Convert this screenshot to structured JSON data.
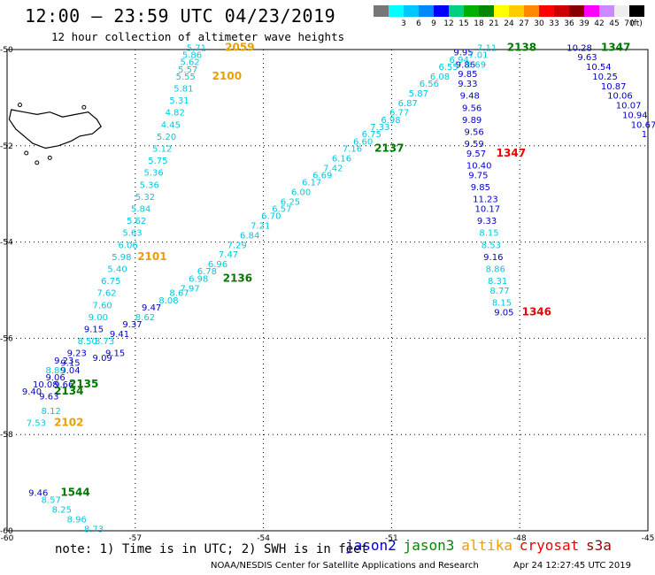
{
  "header": {
    "title": "12:00 — 23:59 UTC 04/23/2019",
    "subtitle": "12 hour collection of altimeter wave heights"
  },
  "scale": {
    "unit_label": "(ft)",
    "bins": [
      {
        "color": "#777777",
        "label": ""
      },
      {
        "color": "#00ffff",
        "label": "3"
      },
      {
        "color": "#00c8ff",
        "label": "6"
      },
      {
        "color": "#0088ff",
        "label": "9"
      },
      {
        "color": "#0000ff",
        "label": "12"
      },
      {
        "color": "#00d080",
        "label": "15"
      },
      {
        "color": "#00b000",
        "label": "18"
      },
      {
        "color": "#008800",
        "label": "21"
      },
      {
        "color": "#ffff00",
        "label": "24"
      },
      {
        "color": "#ffcc00",
        "label": "27"
      },
      {
        "color": "#ff8800",
        "label": "30"
      },
      {
        "color": "#ff0000",
        "label": "33"
      },
      {
        "color": "#cc0000",
        "label": "36"
      },
      {
        "color": "#880000",
        "label": "39"
      },
      {
        "color": "#ff00ff",
        "label": "42"
      },
      {
        "color": "#cc88ff",
        "label": "45"
      },
      {
        "color": "#eeeeee",
        "label": "70"
      },
      {
        "color": "#000000",
        "label": ""
      }
    ]
  },
  "map": {
    "lon_range": [
      -60,
      -45
    ],
    "lat_range": [
      -60,
      -50
    ],
    "lon_ticks": [
      "-60",
      "-57",
      "-54",
      "-51",
      "-48",
      "-45"
    ],
    "lat_ticks": [
      "-50",
      "-52",
      "-54",
      "-56",
      "-58",
      "-60"
    ],
    "colors": {
      "cyan": "#00c8e0",
      "blue": "#0000cc",
      "green": "#007700",
      "orange": "#e8a000",
      "red": "#ee0000"
    },
    "labels": [
      {
        "t": "5.71",
        "c": "cyan",
        "lon": -55.8,
        "lat": -49.95
      },
      {
        "t": "2059",
        "c": "orange",
        "lon": -54.9,
        "lat": -49.95,
        "b": true
      },
      {
        "t": "5.86",
        "c": "cyan",
        "lon": -55.9,
        "lat": -50.1
      },
      {
        "t": "5.62",
        "c": "cyan",
        "lon": -55.95,
        "lat": -50.25
      },
      {
        "t": "5.57",
        "c": "cyan",
        "lon": -56.0,
        "lat": -50.4
      },
      {
        "t": "5.55",
        "c": "cyan",
        "lon": -56.05,
        "lat": -50.55
      },
      {
        "t": "2100",
        "c": "orange",
        "lon": -55.2,
        "lat": -50.55,
        "b": true
      },
      {
        "t": "5.81",
        "c": "cyan",
        "lon": -56.1,
        "lat": -50.8
      },
      {
        "t": "5.31",
        "c": "cyan",
        "lon": -56.2,
        "lat": -51.05
      },
      {
        "t": "4.82",
        "c": "cyan",
        "lon": -56.3,
        "lat": -51.3
      },
      {
        "t": "4.45",
        "c": "cyan",
        "lon": -56.4,
        "lat": -51.55
      },
      {
        "t": "5.20",
        "c": "cyan",
        "lon": -56.5,
        "lat": -51.8
      },
      {
        "t": "5.12",
        "c": "cyan",
        "lon": -56.6,
        "lat": -52.05
      },
      {
        "t": "5.75",
        "c": "cyan",
        "lon": -56.7,
        "lat": -52.3
      },
      {
        "t": "5.36",
        "c": "cyan",
        "lon": -56.8,
        "lat": -52.55
      },
      {
        "t": "5.36",
        "c": "cyan",
        "lon": -56.9,
        "lat": -52.8
      },
      {
        "t": "5.32",
        "c": "cyan",
        "lon": -57.0,
        "lat": -53.05
      },
      {
        "t": "5.84",
        "c": "cyan",
        "lon": -57.1,
        "lat": -53.3
      },
      {
        "t": "5.62",
        "c": "cyan",
        "lon": -57.2,
        "lat": -53.55
      },
      {
        "t": "5.63",
        "c": "cyan",
        "lon": -57.3,
        "lat": -53.8
      },
      {
        "t": "6.06",
        "c": "cyan",
        "lon": -57.4,
        "lat": -54.05
      },
      {
        "t": "5.98",
        "c": "cyan",
        "lon": -57.55,
        "lat": -54.3
      },
      {
        "t": "2101",
        "c": "orange",
        "lon": -56.95,
        "lat": -54.3,
        "b": true
      },
      {
        "t": "5.40",
        "c": "cyan",
        "lon": -57.65,
        "lat": -54.55
      },
      {
        "t": "6.75",
        "c": "cyan",
        "lon": -57.8,
        "lat": -54.8
      },
      {
        "t": "7.62",
        "c": "cyan",
        "lon": -57.9,
        "lat": -55.05
      },
      {
        "t": "7.60",
        "c": "cyan",
        "lon": -58.0,
        "lat": -55.3
      },
      {
        "t": "9.00",
        "c": "cyan",
        "lon": -58.1,
        "lat": -55.55
      },
      {
        "t": "9.15",
        "c": "blue",
        "lon": -58.2,
        "lat": -55.8
      },
      {
        "t": "8.50",
        "c": "cyan",
        "lon": -58.35,
        "lat": -56.05
      },
      {
        "t": "9.23",
        "c": "blue",
        "lon": -58.6,
        "lat": -56.3
      },
      {
        "t": "9.09",
        "c": "blue",
        "lon": -58.0,
        "lat": -56.4
      },
      {
        "t": "9.15",
        "c": "blue",
        "lon": -57.7,
        "lat": -56.3
      },
      {
        "t": "9.23",
        "c": "blue",
        "lon": -58.9,
        "lat": -56.45
      },
      {
        "t": "9.15",
        "c": "blue",
        "lon": -58.75,
        "lat": -56.5
      },
      {
        "t": "9.04",
        "c": "blue",
        "lon": -58.75,
        "lat": -56.65
      },
      {
        "t": "8.89",
        "c": "cyan",
        "lon": -59.1,
        "lat": -56.65
      },
      {
        "t": "9.06",
        "c": "blue",
        "lon": -59.1,
        "lat": -56.8
      },
      {
        "t": "10.08",
        "c": "blue",
        "lon": -59.4,
        "lat": -56.95
      },
      {
        "t": "9.66",
        "c": "blue",
        "lon": -58.9,
        "lat": -56.95
      },
      {
        "t": "2135",
        "c": "green",
        "lon": -58.55,
        "lat": -56.95,
        "b": true
      },
      {
        "t": "9.40",
        "c": "blue",
        "lon": -59.65,
        "lat": -57.1
      },
      {
        "t": "2134",
        "c": "green",
        "lon": -58.9,
        "lat": -57.1,
        "b": true
      },
      {
        "t": "9.63",
        "c": "blue",
        "lon": -59.25,
        "lat": -57.2
      },
      {
        "t": "8.12",
        "c": "cyan",
        "lon": -59.2,
        "lat": -57.5
      },
      {
        "t": "7.53",
        "c": "cyan",
        "lon": -59.55,
        "lat": -57.75
      },
      {
        "t": "2102",
        "c": "orange",
        "lon": -58.9,
        "lat": -57.75,
        "b": true
      },
      {
        "t": "9.46",
        "c": "blue",
        "lon": -59.5,
        "lat": -59.2
      },
      {
        "t": "1544",
        "c": "green",
        "lon": -58.75,
        "lat": -59.2,
        "b": true
      },
      {
        "t": "8.57",
        "c": "cyan",
        "lon": -59.2,
        "lat": -59.35
      },
      {
        "t": "8.25",
        "c": "cyan",
        "lon": -58.95,
        "lat": -59.55
      },
      {
        "t": "8.96",
        "c": "cyan",
        "lon": -58.6,
        "lat": -59.75
      },
      {
        "t": "8.73",
        "c": "cyan",
        "lon": -58.2,
        "lat": -59.95
      },
      {
        "t": "9.37",
        "c": "blue",
        "lon": -57.3,
        "lat": -55.7
      },
      {
        "t": "9.41",
        "c": "blue",
        "lon": -57.6,
        "lat": -55.9
      },
      {
        "t": "8.73",
        "c": "cyan",
        "lon": -57.95,
        "lat": -56.05
      },
      {
        "t": "8.62",
        "c": "cyan",
        "lon": -57.0,
        "lat": -55.55
      },
      {
        "t": "9.47",
        "c": "blue",
        "lon": -56.85,
        "lat": -55.35
      },
      {
        "t": "8.08",
        "c": "cyan",
        "lon": -56.45,
        "lat": -55.2
      },
      {
        "t": "8.67",
        "c": "cyan",
        "lon": -56.2,
        "lat": -55.05
      },
      {
        "t": "7.97",
        "c": "cyan",
        "lon": -55.95,
        "lat": -54.95
      },
      {
        "t": "6.98",
        "c": "cyan",
        "lon": -55.75,
        "lat": -54.75
      },
      {
        "t": "2136",
        "c": "green",
        "lon": -54.95,
        "lat": -54.75,
        "b": true
      },
      {
        "t": "6.78",
        "c": "cyan",
        "lon": -55.55,
        "lat": -54.6
      },
      {
        "t": "6.96",
        "c": "cyan",
        "lon": -55.3,
        "lat": -54.45
      },
      {
        "t": "7.47",
        "c": "cyan",
        "lon": -55.05,
        "lat": -54.25
      },
      {
        "t": "7.29",
        "c": "cyan",
        "lon": -54.85,
        "lat": -54.05
      },
      {
        "t": "6.84",
        "c": "cyan",
        "lon": -54.55,
        "lat": -53.85
      },
      {
        "t": "7.21",
        "c": "cyan",
        "lon": -54.3,
        "lat": -53.65
      },
      {
        "t": "6.70",
        "c": "cyan",
        "lon": -54.05,
        "lat": -53.45
      },
      {
        "t": "6.57",
        "c": "cyan",
        "lon": -53.8,
        "lat": -53.3
      },
      {
        "t": "6.25",
        "c": "cyan",
        "lon": -53.6,
        "lat": -53.15
      },
      {
        "t": "6.00",
        "c": "cyan",
        "lon": -53.35,
        "lat": -52.95
      },
      {
        "t": "6.17",
        "c": "cyan",
        "lon": -53.1,
        "lat": -52.75
      },
      {
        "t": "6.69",
        "c": "cyan",
        "lon": -52.85,
        "lat": -52.6
      },
      {
        "t": "7.42",
        "c": "cyan",
        "lon": -52.6,
        "lat": -52.45
      },
      {
        "t": "6.16",
        "c": "cyan",
        "lon": -52.4,
        "lat": -52.25
      },
      {
        "t": "7.16",
        "c": "cyan",
        "lon": -52.15,
        "lat": -52.05
      },
      {
        "t": "2137",
        "c": "green",
        "lon": -51.4,
        "lat": -52.05,
        "b": true
      },
      {
        "t": "6.60",
        "c": "cyan",
        "lon": -51.9,
        "lat": -51.9
      },
      {
        "t": "6.75",
        "c": "cyan",
        "lon": -51.7,
        "lat": -51.75
      },
      {
        "t": "7.33",
        "c": "cyan",
        "lon": -51.5,
        "lat": -51.6
      },
      {
        "t": "6.98",
        "c": "cyan",
        "lon": -51.25,
        "lat": -51.45
      },
      {
        "t": "6.77",
        "c": "cyan",
        "lon": -51.05,
        "lat": -51.3
      },
      {
        "t": "6.87",
        "c": "cyan",
        "lon": -50.85,
        "lat": -51.1
      },
      {
        "t": "5.87",
        "c": "cyan",
        "lon": -50.6,
        "lat": -50.9
      },
      {
        "t": "6.56",
        "c": "cyan",
        "lon": -50.35,
        "lat": -50.7
      },
      {
        "t": "6.08",
        "c": "cyan",
        "lon": -50.1,
        "lat": -50.55
      },
      {
        "t": "6.55",
        "c": "cyan",
        "lon": -49.9,
        "lat": -50.35
      },
      {
        "t": "6.94",
        "c": "cyan",
        "lon": -49.65,
        "lat": -50.2
      },
      {
        "t": "7.11",
        "c": "cyan",
        "lon": -49.0,
        "lat": -49.95
      },
      {
        "t": "2138",
        "c": "green",
        "lon": -48.3,
        "lat": -49.95,
        "b": true
      },
      {
        "t": "9.95",
        "c": "blue",
        "lon": -49.55,
        "lat": -50.05
      },
      {
        "t": "7.01",
        "c": "cyan",
        "lon": -49.2,
        "lat": -50.1
      },
      {
        "t": "9.86",
        "c": "blue",
        "lon": -49.5,
        "lat": -50.3
      },
      {
        "t": "6.69",
        "c": "cyan",
        "lon": -49.25,
        "lat": -50.3
      },
      {
        "t": "9.85",
        "c": "blue",
        "lon": -49.45,
        "lat": -50.5
      },
      {
        "t": "9.33",
        "c": "blue",
        "lon": -49.45,
        "lat": -50.7
      },
      {
        "t": "9.48",
        "c": "blue",
        "lon": -49.4,
        "lat": -50.95
      },
      {
        "t": "9.56",
        "c": "blue",
        "lon": -49.35,
        "lat": -51.2
      },
      {
        "t": "9.89",
        "c": "blue",
        "lon": -49.35,
        "lat": -51.45
      },
      {
        "t": "9.56",
        "c": "blue",
        "lon": -49.3,
        "lat": -51.7
      },
      {
        "t": "9.59",
        "c": "blue",
        "lon": -49.3,
        "lat": -51.95
      },
      {
        "t": "9.57",
        "c": "blue",
        "lon": -49.25,
        "lat": -52.15
      },
      {
        "t": "1347",
        "c": "red",
        "lon": -48.55,
        "lat": -52.15,
        "b": true
      },
      {
        "t": "10.40",
        "c": "blue",
        "lon": -49.25,
        "lat": -52.4
      },
      {
        "t": "9.75",
        "c": "blue",
        "lon": -49.2,
        "lat": -52.6
      },
      {
        "t": "9.85",
        "c": "blue",
        "lon": -49.15,
        "lat": -52.85
      },
      {
        "t": "11.23",
        "c": "blue",
        "lon": -49.1,
        "lat": -53.1
      },
      {
        "t": "10.17",
        "c": "blue",
        "lon": -49.05,
        "lat": -53.3
      },
      {
        "t": "9.33",
        "c": "blue",
        "lon": -49.0,
        "lat": -53.55
      },
      {
        "t": "8.15",
        "c": "cyan",
        "lon": -48.95,
        "lat": -53.8
      },
      {
        "t": "8.53",
        "c": "cyan",
        "lon": -48.9,
        "lat": -54.05
      },
      {
        "t": "9.16",
        "c": "blue",
        "lon": -48.85,
        "lat": -54.3
      },
      {
        "t": "8.86",
        "c": "cyan",
        "lon": -48.8,
        "lat": -54.55
      },
      {
        "t": "8.31",
        "c": "cyan",
        "lon": -48.75,
        "lat": -54.8
      },
      {
        "t": "8.77",
        "c": "cyan",
        "lon": -48.7,
        "lat": -55.0
      },
      {
        "t": "8.15",
        "c": "cyan",
        "lon": -48.65,
        "lat": -55.25
      },
      {
        "t": "9.05",
        "c": "blue",
        "lon": -48.6,
        "lat": -55.45
      },
      {
        "t": "1346",
        "c": "red",
        "lon": -47.95,
        "lat": -55.45,
        "b": true
      },
      {
        "t": "10.28",
        "c": "blue",
        "lon": -46.9,
        "lat": -49.95
      },
      {
        "t": "1347",
        "c": "green",
        "lon": -46.1,
        "lat": -49.95,
        "b": true
      },
      {
        "t": "9.63",
        "c": "blue",
        "lon": -46.65,
        "lat": -50.15
      },
      {
        "t": "10.54",
        "c": "blue",
        "lon": -46.45,
        "lat": -50.35
      },
      {
        "t": "10.25",
        "c": "blue",
        "lon": -46.3,
        "lat": -50.55
      },
      {
        "t": "10.87",
        "c": "blue",
        "lon": -46.1,
        "lat": -50.75
      },
      {
        "t": "10.06",
        "c": "blue",
        "lon": -45.95,
        "lat": -50.95
      },
      {
        "t": "10.07",
        "c": "blue",
        "lon": -45.75,
        "lat": -51.15
      },
      {
        "t": "10.94",
        "c": "blue",
        "lon": -45.6,
        "lat": -51.35
      },
      {
        "t": "10.67",
        "c": "blue",
        "lon": -45.4,
        "lat": -51.55
      },
      {
        "t": "1",
        "c": "blue",
        "lon": -45.15,
        "lat": -51.75
      }
    ]
  },
  "footer": {
    "note": "note: 1) Time is in UTC; 2) SWH is in feet",
    "satellites": [
      {
        "name": "jason2",
        "color": "#0000cc"
      },
      {
        "name": "jason3",
        "color": "#008800"
      },
      {
        "name": "altika",
        "color": "#e8a000"
      },
      {
        "name": "cryosat",
        "color": "#ee0000"
      },
      {
        "name": "s3a",
        "color": "#990000"
      }
    ],
    "credit": "NOAA/NESDIS Center for Satellite Applications and Research",
    "timestamp": "Apr 24 12:27:45 UTC 2019"
  }
}
